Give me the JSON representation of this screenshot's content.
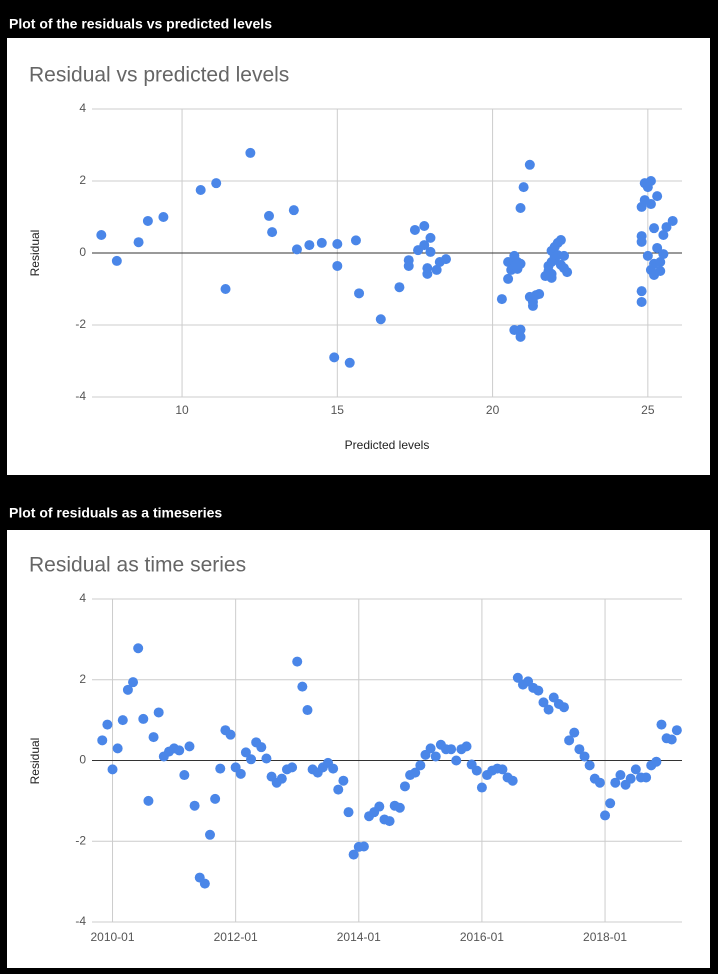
{
  "headings": [
    "Plot of the residuals vs predicted levels",
    "Plot of residuals as a timeseries"
  ],
  "chart_data": [
    {
      "type": "scatter",
      "title": "Residual vs predicted levels",
      "x_label": "Predicted levels",
      "y_label": "Residual",
      "color": "#4a86e8",
      "grid": true,
      "xlim": [
        7.1,
        26.1
      ],
      "xticks": [
        10,
        15,
        20,
        25
      ],
      "ylim": [
        -4,
        4
      ],
      "yticks": [
        -4,
        -2,
        0,
        2,
        4
      ],
      "x": [
        7.4,
        7.9,
        8.6,
        8.9,
        9.4,
        10.6,
        11.1,
        11.4,
        12.2,
        12.8,
        12.9,
        13.6,
        13.7,
        14.1,
        14.5,
        15.0,
        15.0,
        14.9,
        15.4,
        15.6,
        15.7,
        16.4,
        17.0,
        17.3,
        17.3,
        17.5,
        17.6,
        17.8,
        17.8,
        17.9,
        17.9,
        18.0,
        18.0,
        18.2,
        18.3,
        18.5,
        20.3,
        20.5,
        20.5,
        20.6,
        20.7,
        20.7,
        20.7,
        20.8,
        20.8,
        20.9,
        20.9,
        20.9,
        20.9,
        21.0,
        21.2,
        21.2,
        21.3,
        21.3,
        21.4,
        21.5,
        21.7,
        21.8,
        21.8,
        21.9,
        21.9,
        21.9,
        21.9,
        22.0,
        22.0,
        22.0,
        22.1,
        22.1,
        22.2,
        22.2,
        22.3,
        22.3,
        22.4,
        24.8,
        24.8,
        24.8,
        24.8,
        24.8,
        24.9,
        24.9,
        25.0,
        25.0,
        25.1,
        25.1,
        25.1,
        25.2,
        25.2,
        25.2,
        25.3,
        25.3,
        25.4,
        25.4,
        25.5,
        25.5,
        25.6,
        25.8
      ],
      "values": [
        0.5,
        -0.22,
        0.3,
        0.89,
        1.0,
        1.75,
        1.94,
        -1.0,
        2.78,
        1.03,
        0.58,
        1.19,
        0.1,
        0.22,
        0.28,
        0.25,
        -0.36,
        -2.9,
        -3.05,
        0.35,
        -1.12,
        -1.84,
        -0.95,
        -0.36,
        -0.2,
        0.64,
        0.08,
        0.75,
        0.22,
        -0.42,
        -0.58,
        0.42,
        0.03,
        -0.47,
        -0.25,
        -0.17,
        -1.28,
        -0.72,
        -0.25,
        -0.47,
        -0.22,
        -0.08,
        -2.14,
        -0.25,
        -0.44,
        -2.13,
        -0.3,
        1.25,
        -2.33,
        1.83,
        2.45,
        -1.22,
        -1.36,
        -1.47,
        -1.17,
        -1.14,
        -0.64,
        -0.5,
        -0.36,
        -0.58,
        -0.25,
        0.06,
        -0.69,
        -0.19,
        0.17,
        -0.11,
        -0.06,
        0.28,
        -0.33,
        0.36,
        -0.42,
        -0.08,
        -0.53,
        -1.36,
        -1.06,
        0.31,
        0.47,
        1.28,
        1.94,
        1.47,
        -0.08,
        1.83,
        -0.47,
        2.0,
        1.36,
        0.69,
        -0.3,
        -0.61,
        0.14,
        1.58,
        -0.25,
        -0.5,
        0.5,
        -0.03,
        0.72,
        0.89
      ]
    },
    {
      "type": "scatter",
      "title": "Residual as time series",
      "y_label": "Residual",
      "color": "#4a86e8",
      "grid": true,
      "xlim": [
        "2009-09",
        "2019-04"
      ],
      "xticks": [
        "2010-01",
        "2012-01",
        "2014-01",
        "2016-01",
        "2018-01"
      ],
      "ylim": [
        -4,
        4
      ],
      "yticks": [
        -4,
        -2,
        0,
        2,
        4
      ],
      "x": [
        "2009-11",
        "2009-12",
        "2010-01",
        "2010-02",
        "2010-03",
        "2010-04",
        "2010-05",
        "2010-06",
        "2010-07",
        "2010-08",
        "2010-09",
        "2010-10",
        "2010-11",
        "2010-12",
        "2011-01",
        "2011-02",
        "2011-03",
        "2011-04",
        "2011-05",
        "2011-06",
        "2011-07",
        "2011-08",
        "2011-09",
        "2011-10",
        "2011-11",
        "2011-12",
        "2012-01",
        "2012-02",
        "2012-03",
        "2012-04",
        "2012-05",
        "2012-06",
        "2012-07",
        "2012-08",
        "2012-09",
        "2012-10",
        "2012-11",
        "2012-12",
        "2013-01",
        "2013-02",
        "2013-03",
        "2013-04",
        "2013-05",
        "2013-06",
        "2013-07",
        "2013-08",
        "2013-09",
        "2013-10",
        "2013-11",
        "2013-12",
        "2014-01",
        "2014-02",
        "2014-03",
        "2014-04",
        "2014-05",
        "2014-06",
        "2014-07",
        "2014-08",
        "2014-09",
        "2014-10",
        "2014-11",
        "2014-12",
        "2015-01",
        "2015-02",
        "2015-03",
        "2015-04",
        "2015-05",
        "2015-06",
        "2015-07",
        "2015-08",
        "2015-09",
        "2015-10",
        "2015-11",
        "2015-12",
        "2016-01",
        "2016-02",
        "2016-03",
        "2016-04",
        "2016-05",
        "2016-06",
        "2016-07",
        "2016-08",
        "2016-09",
        "2016-10",
        "2016-11",
        "2016-12",
        "2017-01",
        "2017-02",
        "2017-03",
        "2017-04",
        "2017-05",
        "2017-06",
        "2017-07",
        "2017-08",
        "2017-09",
        "2017-10",
        "2017-11",
        "2017-12",
        "2018-01",
        "2018-02",
        "2018-03",
        "2018-04",
        "2018-05",
        "2018-06",
        "2018-07",
        "2018-08",
        "2018-09",
        "2018-10",
        "2018-11",
        "2018-12",
        "2019-01",
        "2019-02",
        "2019-03"
      ],
      "values": [
        0.5,
        0.89,
        -0.22,
        0.3,
        1.0,
        1.75,
        1.94,
        2.78,
        1.03,
        -1.0,
        0.58,
        1.19,
        0.1,
        0.22,
        0.3,
        0.25,
        -0.36,
        0.35,
        -1.12,
        -2.9,
        -3.05,
        -1.84,
        -0.95,
        -0.2,
        0.75,
        0.64,
        -0.17,
        -0.33,
        0.2,
        0.03,
        0.45,
        0.33,
        0.05,
        -0.4,
        -0.55,
        -0.45,
        -0.22,
        -0.17,
        2.45,
        1.83,
        1.25,
        -0.22,
        -0.3,
        -0.17,
        -0.06,
        -0.2,
        -0.72,
        -0.5,
        -1.28,
        -2.33,
        -2.14,
        -2.13,
        -1.38,
        -1.28,
        -1.14,
        -1.46,
        -1.5,
        -1.12,
        -1.17,
        -0.64,
        -0.36,
        -0.3,
        -0.12,
        0.14,
        0.3,
        0.1,
        0.39,
        0.28,
        0.28,
        0.0,
        0.28,
        0.35,
        -0.1,
        -0.25,
        -0.67,
        -0.36,
        -0.25,
        -0.2,
        -0.22,
        -0.42,
        -0.5,
        2.05,
        1.88,
        1.96,
        1.8,
        1.73,
        1.44,
        1.26,
        1.56,
        1.4,
        1.32,
        0.5,
        0.69,
        0.28,
        0.1,
        -0.12,
        -0.45,
        -0.55,
        -1.36,
        -1.06,
        -0.55,
        -0.36,
        -0.6,
        -0.45,
        -0.22,
        -0.42,
        -0.42,
        -0.12,
        -0.03,
        0.89,
        0.55,
        0.52,
        0.75
      ]
    }
  ]
}
